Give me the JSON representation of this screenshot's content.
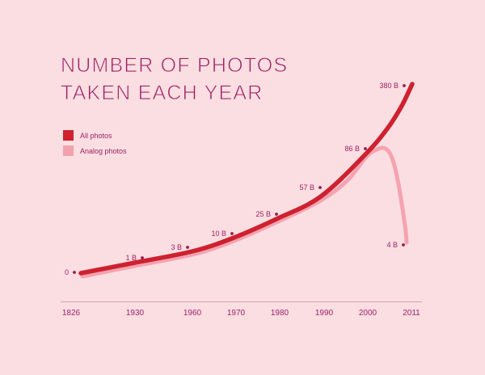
{
  "title": {
    "line1": "NUMBER OF PHOTOS",
    "line2": "TAKEN EACH YEAR"
  },
  "legend": [
    {
      "label": "All photos",
      "color": "#ce2130"
    },
    {
      "label": "Analog photos",
      "color": "#f2a2ae"
    }
  ],
  "colors": {
    "background": "#fbdee1",
    "text": "#9e2166",
    "axis": "#cfa2b2",
    "all_photos": "#ce2130",
    "analog_photos": "#f4a3b0",
    "dot": "#8e1d52"
  },
  "chart_data": {
    "type": "line",
    "title": "Number of photos taken each year",
    "x": [
      "1826",
      "1930",
      "1960",
      "1970",
      "1980",
      "1990",
      "2000",
      "2011"
    ],
    "series": [
      {
        "name": "All photos",
        "color": "#ce2130",
        "values_billions": [
          0,
          1,
          3,
          10,
          25,
          57,
          86,
          380
        ]
      },
      {
        "name": "Analog photos",
        "color": "#f4a3b0",
        "values_billions": [
          0,
          1,
          3,
          10,
          25,
          57,
          86,
          4
        ]
      }
    ],
    "point_labels": [
      "0",
      "1 B",
      "3 B",
      "10 B",
      "25 B",
      "57 B",
      "86 B",
      "380 B"
    ],
    "analog_end_label": "4 B",
    "xlabel": "",
    "ylabel": "",
    "grid": false,
    "legend_position": "top-left"
  }
}
